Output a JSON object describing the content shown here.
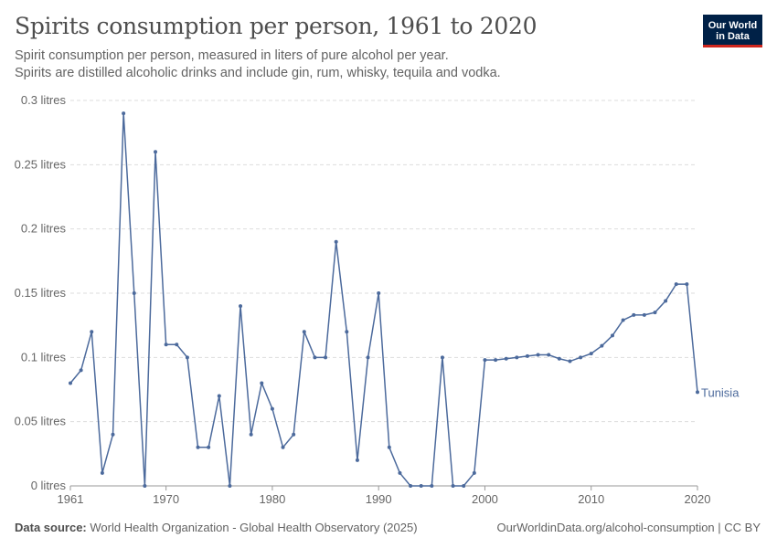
{
  "header": {
    "title": "Spirits consumption per person, 1961 to 2020",
    "subtitle_line1": "Spirit consumption per person, measured in liters of pure alcohol per year.",
    "subtitle_line2": "Spirits are distilled alcoholic drinks and include gin, rum, whisky, tequila and vodka."
  },
  "logo": {
    "line1": "Our World",
    "line2": "in Data",
    "bg_color": "#002147",
    "accent_color": "#ce261e"
  },
  "footer": {
    "source_label": "Data source:",
    "source_text": "World Health Organization - Global Health Observatory (2025)",
    "right_text": "OurWorldinData.org/alcohol-consumption | CC BY"
  },
  "chart_data": {
    "type": "line",
    "title": "Spirits consumption per person, 1961 to 2020",
    "xlabel": "",
    "ylabel": "",
    "xlim": [
      1961,
      2020
    ],
    "ylim": [
      0,
      0.3
    ],
    "x_ticks": [
      1961,
      1970,
      1980,
      1990,
      2000,
      2010,
      2020
    ],
    "y_ticks": [
      0,
      0.05,
      0.1,
      0.15,
      0.2,
      0.25,
      0.3
    ],
    "y_tick_labels": [
      "0 litres",
      "0.05 litres",
      "0.1 litres",
      "0.15 litres",
      "0.2 litres",
      "0.25 litres",
      "0.3 litres"
    ],
    "grid": "horizontal dashed",
    "series": [
      {
        "name": "Tunisia",
        "color": "#4c6a9c",
        "x": [
          1961,
          1962,
          1963,
          1964,
          1965,
          1966,
          1967,
          1968,
          1969,
          1970,
          1971,
          1972,
          1973,
          1974,
          1975,
          1976,
          1977,
          1978,
          1979,
          1980,
          1981,
          1982,
          1983,
          1984,
          1985,
          1986,
          1987,
          1988,
          1989,
          1990,
          1991,
          1992,
          1993,
          1994,
          1995,
          1996,
          1997,
          1998,
          1999,
          2000,
          2001,
          2002,
          2003,
          2004,
          2005,
          2006,
          2007,
          2008,
          2009,
          2010,
          2011,
          2012,
          2013,
          2014,
          2015,
          2016,
          2017,
          2018,
          2019,
          2020
        ],
        "y": [
          0.08,
          0.09,
          0.12,
          0.01,
          0.04,
          0.29,
          0.15,
          0.0,
          0.26,
          0.11,
          0.11,
          0.1,
          0.03,
          0.03,
          0.07,
          0.0,
          0.14,
          0.04,
          0.08,
          0.06,
          0.03,
          0.04,
          0.12,
          0.1,
          0.1,
          0.19,
          0.12,
          0.02,
          0.1,
          0.15,
          0.03,
          0.01,
          0.0,
          0.0,
          0.0,
          0.1,
          0.0,
          0.0,
          0.01,
          0.098,
          0.098,
          0.099,
          0.1,
          0.101,
          0.102,
          0.102,
          0.099,
          0.097,
          0.1,
          0.103,
          0.109,
          0.117,
          0.129,
          0.133,
          0.133,
          0.135,
          0.144,
          0.157,
          0.157,
          0.073
        ]
      }
    ]
  }
}
